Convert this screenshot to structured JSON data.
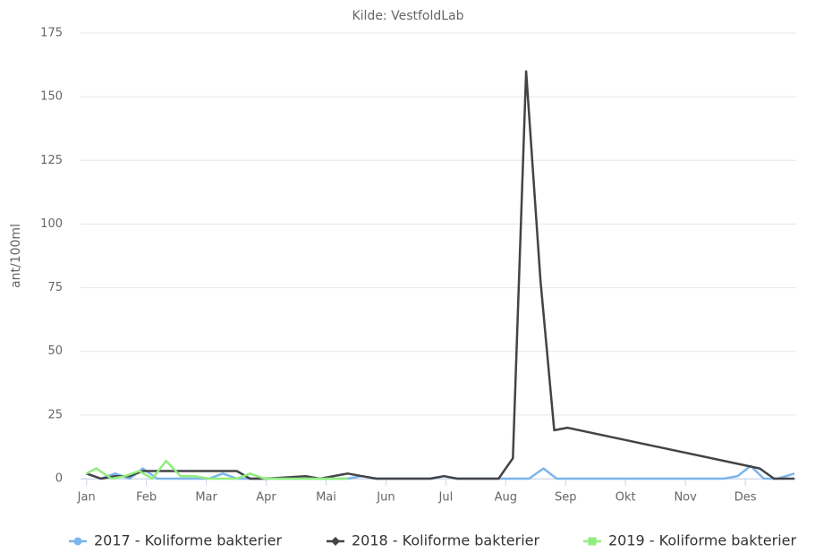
{
  "chart_data": {
    "type": "line",
    "subtitle": "Kilde: VestfoldLab",
    "y_label": "ant/100ml",
    "xlim": [
      -0.1,
      11.85
    ],
    "xticks": [
      {
        "value": 0,
        "label": "Jan"
      },
      {
        "value": 1,
        "label": "Feb"
      },
      {
        "value": 2,
        "label": "Mar"
      },
      {
        "value": 3,
        "label": "Apr"
      },
      {
        "value": 4,
        "label": "Mai"
      },
      {
        "value": 5,
        "label": "Jun"
      },
      {
        "value": 6,
        "label": "Jul"
      },
      {
        "value": 7,
        "label": "Aug"
      },
      {
        "value": 8,
        "label": "Sep"
      },
      {
        "value": 9,
        "label": "Okt"
      },
      {
        "value": 10,
        "label": "Nov"
      },
      {
        "value": 11,
        "label": "Des"
      }
    ],
    "ylim": [
      0,
      175
    ],
    "yticks": [
      0,
      25,
      50,
      75,
      100,
      125,
      150,
      175
    ],
    "grid": true,
    "series": [
      {
        "name": "2017 - Koliforme bakterier",
        "color": "#7cb5ec",
        "marker": "circle",
        "x": [
          0,
          0.24,
          0.48,
          0.72,
          0.94,
          1.18,
          2.04,
          2.28,
          2.51,
          4.36,
          4.6,
          4.84,
          5.74,
          5.97,
          6.19,
          7.39,
          7.63,
          7.85,
          10.64,
          10.87,
          11.09,
          11.31,
          11.54,
          11.82
        ],
        "values": [
          2,
          0,
          2,
          0,
          4,
          0,
          0,
          2,
          0,
          0,
          1,
          0,
          0,
          1,
          0,
          0,
          4,
          0,
          0,
          1,
          5,
          0,
          0,
          2
        ]
      },
      {
        "name": "2018 - Koliforme bakterier",
        "color": "#434348",
        "marker": "diamond",
        "x": [
          0,
          0.24,
          0.48,
          0.72,
          0.94,
          1.5,
          2.0,
          2.51,
          2.73,
          3.0,
          3.66,
          3.9,
          4.36,
          4.6,
          4.84,
          5.74,
          5.97,
          6.19,
          6.88,
          7.12,
          7.34,
          7.58,
          7.81,
          8.03,
          11.24,
          11.48,
          11.82
        ],
        "values": [
          2,
          0,
          1,
          1,
          3,
          3,
          3,
          3,
          0,
          0,
          1,
          0,
          2,
          1,
          0,
          0,
          1,
          0,
          0,
          8,
          160,
          78,
          19,
          20,
          4,
          0,
          0
        ]
      },
      {
        "name": "2019 - Koliforme bakterier",
        "color": "#90ed7d",
        "marker": "square",
        "x": [
          0,
          0.16,
          0.42,
          0.64,
          0.88,
          1.1,
          1.33,
          1.57,
          1.81,
          2.04,
          2.51,
          2.73,
          2.97,
          4.36
        ],
        "values": [
          2,
          4,
          0,
          1,
          3,
          0,
          7,
          1,
          1,
          0,
          0,
          2,
          0,
          0
        ]
      }
    ]
  }
}
